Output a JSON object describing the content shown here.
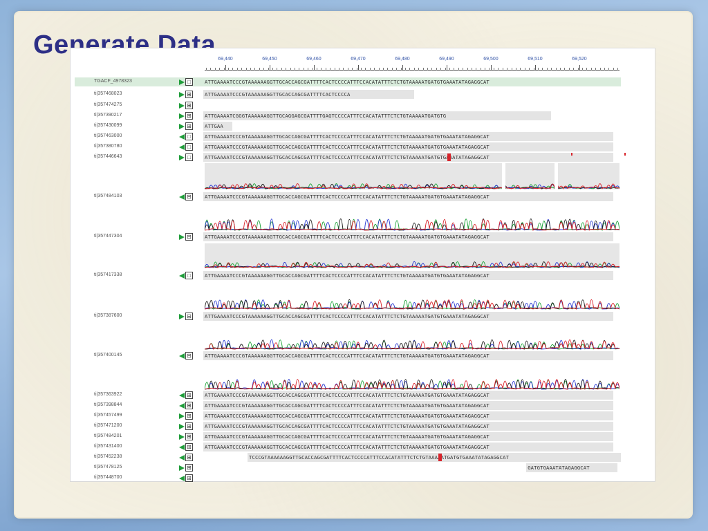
{
  "slide": {
    "title": "Generate Data"
  },
  "ruler": {
    "labels": [
      "69,440",
      "69,450",
      "69,460",
      "69,470",
      "69,480",
      "69,490",
      "69,500",
      "69,510",
      "69,520"
    ]
  },
  "reference": {
    "name": "TGACF_4978323",
    "sequence": "ATTGAAAATCCCGTAAAAAAGGTTGCACCAGCGATTTTCACTCCCCATTTCCACATATTTCTCTGTAAAAATGATGTGAAATATAGAGGCAT"
  },
  "rows": [
    {
      "name": "ti|357468023",
      "dir": "r",
      "box": "⊞",
      "sequence": "ATTGAAAATCCCGTAAAAAAGGTTGCACCAGCGATTTTCACTCCCCA",
      "start": 0
    },
    {
      "name": "ti|357474275",
      "dir": "r",
      "box": "⊞",
      "sequence": "",
      "start": 0
    },
    {
      "name": "ti|357390217",
      "dir": "r",
      "box": "⊞",
      "sequence": "ATTGAAAATCGGGTAAAAAAGGTTGCAGGAGCGATTTTGAGTCCCCATTTCCACATATTTCTCTGTAAAAATGATGTG",
      "start": 0
    },
    {
      "name": "ti|357430099",
      "dir": "r",
      "box": "⊞",
      "sequence": "ATTGAA",
      "start": 0
    },
    {
      "name": "ti|357463000",
      "dir": "l",
      "box": "□",
      "sequence": "ATTGAAAATCCCGTAAAAAAGGTTGCACCAGCGATTTTCACTCCCCATTTCCACATATTTCTCTGTAAAAATGATGTGAAATATAGAGGCAT",
      "start": 0
    },
    {
      "name": "ti|357380780",
      "dir": "l",
      "box": "□",
      "sequence": "ATTGAAAATCCCGTAAAAAAGGTTGCACCAGCGATTTTCACTCCCCATTTCCACATATTTCTCTGTAAAAATGATGTGAAATATAGAGGCAT",
      "start": 0
    },
    {
      "name": "ti|357446643",
      "dir": "r",
      "box": "□",
      "sequence": "ATTGAAAATCCCGTAAAAAAGGTTGCACCAGCGATTTTCACTCCCCATTTCCACATATTTCTCTGTAAAAATGATGTGAAATATAGAGGCAT",
      "start": 0
    },
    {
      "name": "ti|357484103",
      "dir": "l",
      "box": "⊟",
      "sequence": "ATTGAAAATCCCGTAAAAAAGGTTGCACCAGCGATTTTCACTCCCCATTTCCACATATTTCTCTGTAAAAATGATGTGAAATATAGAGGCAT",
      "start": 0
    },
    {
      "name": "ti|357447304",
      "dir": "r",
      "box": "⊟",
      "sequence": "ATTGAAAATCCCGTAAAAAAGGTTGCACCAGCGATTTTCACTCCCCATTTCCACATATTTCTCTGTAAAAATGATGTGAAATATAGAGGCAT",
      "start": 0
    },
    {
      "name": "ti|357417338",
      "dir": "l",
      "box": "□",
      "sequence": "ATTGAAAATCCCGTAAAAAAGGTTGCACCAGCGATTTTCACTCCCCATTTCCACATATTTCTCTGTAAAAATGATGTGAAATATAGAGGCAT",
      "start": 0
    },
    {
      "name": "ti|357387600",
      "dir": "r",
      "box": "⊟",
      "sequence": "ATTGAAAATCCCGTAAAAAAGGTTGCACCAGCGATTTTCACTCCCCATTTCCACATATTTCTCTGTAAAAATGATGTGAAATATAGAGGCAT",
      "start": 0
    },
    {
      "name": "ti|357400145",
      "dir": "l",
      "box": "⊟",
      "sequence": "ATTGAAAATCCCGTAAAAAAGGTTGCACCAGCGATTTTCACTCCCCATTTCCACATATTTCTCTGTAAAAATGATGTGAAATATAGAGGCAT",
      "start": 0
    },
    {
      "name": "ti|357363922",
      "dir": "l",
      "box": "⊞",
      "sequence": "ATTGAAAATCCCGTAAAAAAGGTTGCACCAGCGATTTTCACTCCCCATTTCCACATATTTCTCTGTAAAAATGATGTGAAATATAGAGGCAT",
      "start": 0
    },
    {
      "name": "ti|357398844",
      "dir": "l",
      "box": "⊞",
      "sequence": "ATTGAAAATCCCGTAAAAAAGGTTGCACCAGCGATTTTCACTCCCCATTTCCACATATTTCTCTGTAAAAATGATGTGAAATATAGAGGCAT",
      "start": 0
    },
    {
      "name": "ti|357457499",
      "dir": "r",
      "box": "⊞",
      "sequence": "ATTGAAAATCCCGTAAAAAAGGTTGCACCAGCGATTTTCACTCCCCATTTCCACATATTTCTCTGTAAAAATGATGTGAAATATAGAGGCAT",
      "start": 0
    },
    {
      "name": "ti|357471200",
      "dir": "r",
      "box": "⊞",
      "sequence": "ATTGAAAATCCCGTAAAAAAGGTTGCACCAGCGATTTTCACTCCCCATTTCCACATATTTCTCTGTAAAAATGATGTGAAATATAGAGGCAT",
      "start": 0
    },
    {
      "name": "ti|357484201",
      "dir": "r",
      "box": "⊞",
      "sequence": "ATTGAAAATCCCGTAAAAAAGGTTGCACCAGCGATTTTCACTCCCCATTTCCACATATTTCTCTGTAAAAATGATGTGAAATATAGAGGCAT",
      "start": 0
    },
    {
      "name": "ti|357431400",
      "dir": "l",
      "box": "⊞",
      "sequence": "ATTGAAAATCCCGTAAAAAAGGTTGCACCAGCGATTTTCACTCCCCATTTCCACATATTTCTCTGTAAAAATGATGTGAAATATAGAGGCAT",
      "start": 0
    },
    {
      "name": "ti|357452238",
      "dir": "l",
      "box": "⊞",
      "sequence": "TCCCGTAAAAAAGGTTGCACCAGCGATTTTCACTCCCCATTTCCACATATTTCTCTGTAAAAATGATGTGAAATATAGAGGCAT",
      "start": 10
    },
    {
      "name": "ti|357478125",
      "dir": "r",
      "box": "⊞",
      "sequence": "GATGTGAAATATAGAGGCAT",
      "start": 73
    },
    {
      "name": "ti|357448700",
      "dir": "l",
      "box": "⊞",
      "sequence": "",
      "start": 0
    }
  ],
  "colors": {
    "trace_a": "#1fa33a",
    "trace_c": "#2b3bd1",
    "trace_g": "#222222",
    "trace_t": "#d8242c",
    "mismatch": "#d8242c",
    "ref_bg": "#d9ecdc"
  }
}
